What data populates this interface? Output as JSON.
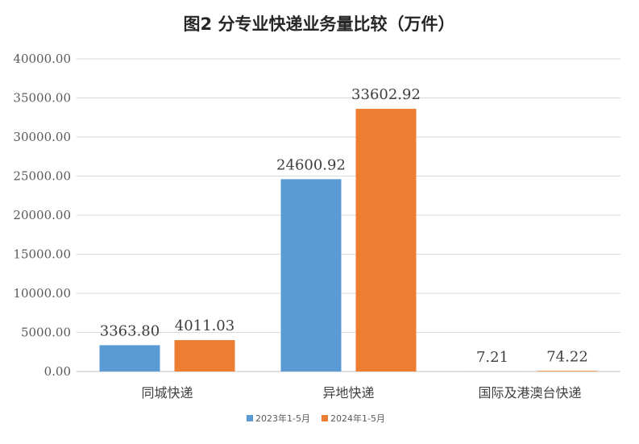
{
  "chart_data": {
    "type": "bar",
    "title": "图2    分专业快递业务量比较（万件）",
    "categories": [
      "同城快递",
      "异地快递",
      "国际及港澳台快递"
    ],
    "series": [
      {
        "name": "2023年1-5月",
        "color": "#5B9BD5",
        "values": [
          3363.8,
          24600.92,
          7.21
        ],
        "labels": [
          "3363.80",
          "24600.92",
          "7.21"
        ]
      },
      {
        "name": "2024年1-5月",
        "color": "#ED7D31",
        "values": [
          4011.03,
          33602.92,
          74.22
        ],
        "labels": [
          "4011.03",
          "33602.92",
          "74.22"
        ]
      }
    ],
    "ylim": [
      0,
      40000
    ],
    "yticks": [
      "0.00",
      "5000.00",
      "10000.00",
      "15000.00",
      "20000.00",
      "25000.00",
      "30000.00",
      "35000.00",
      "40000.00"
    ],
    "grid": true,
    "legend": "bottom",
    "xlabel": "",
    "ylabel": ""
  }
}
